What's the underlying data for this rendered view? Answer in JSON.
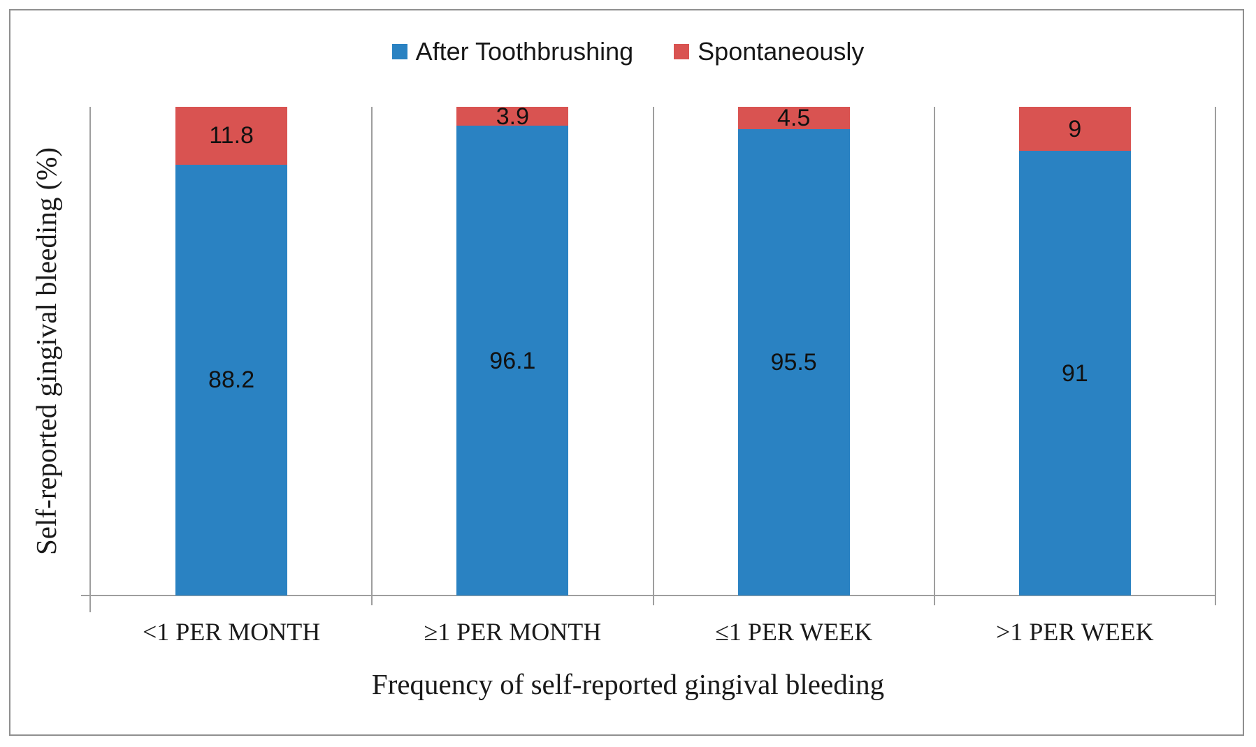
{
  "figure": {
    "background": "#ffffff",
    "border_color": "#8f8f8f",
    "axis_color": "#9e9e9e"
  },
  "chart_data": {
    "type": "bar",
    "stacked": true,
    "stacked_total": 100,
    "categories": [
      "<1 PER MONTH",
      "≥1 PER MONTH",
      "≤1 PER WEEK",
      ">1 PER WEEK"
    ],
    "series": [
      {
        "name": "After Toothbrushing",
        "color": "#2a82c2",
        "values": [
          88.2,
          96.1,
          95.5,
          91
        ]
      },
      {
        "name": "Spontaneously",
        "color": "#d95351",
        "values": [
          11.8,
          3.9,
          4.5,
          9
        ]
      }
    ],
    "title": "",
    "xlabel": "Frequency of self-reported gingival bleeding",
    "ylabel": "Self-reported gingival bleeding (%)",
    "ylim": [
      0,
      100
    ],
    "grid": false,
    "legend_position": "top"
  }
}
